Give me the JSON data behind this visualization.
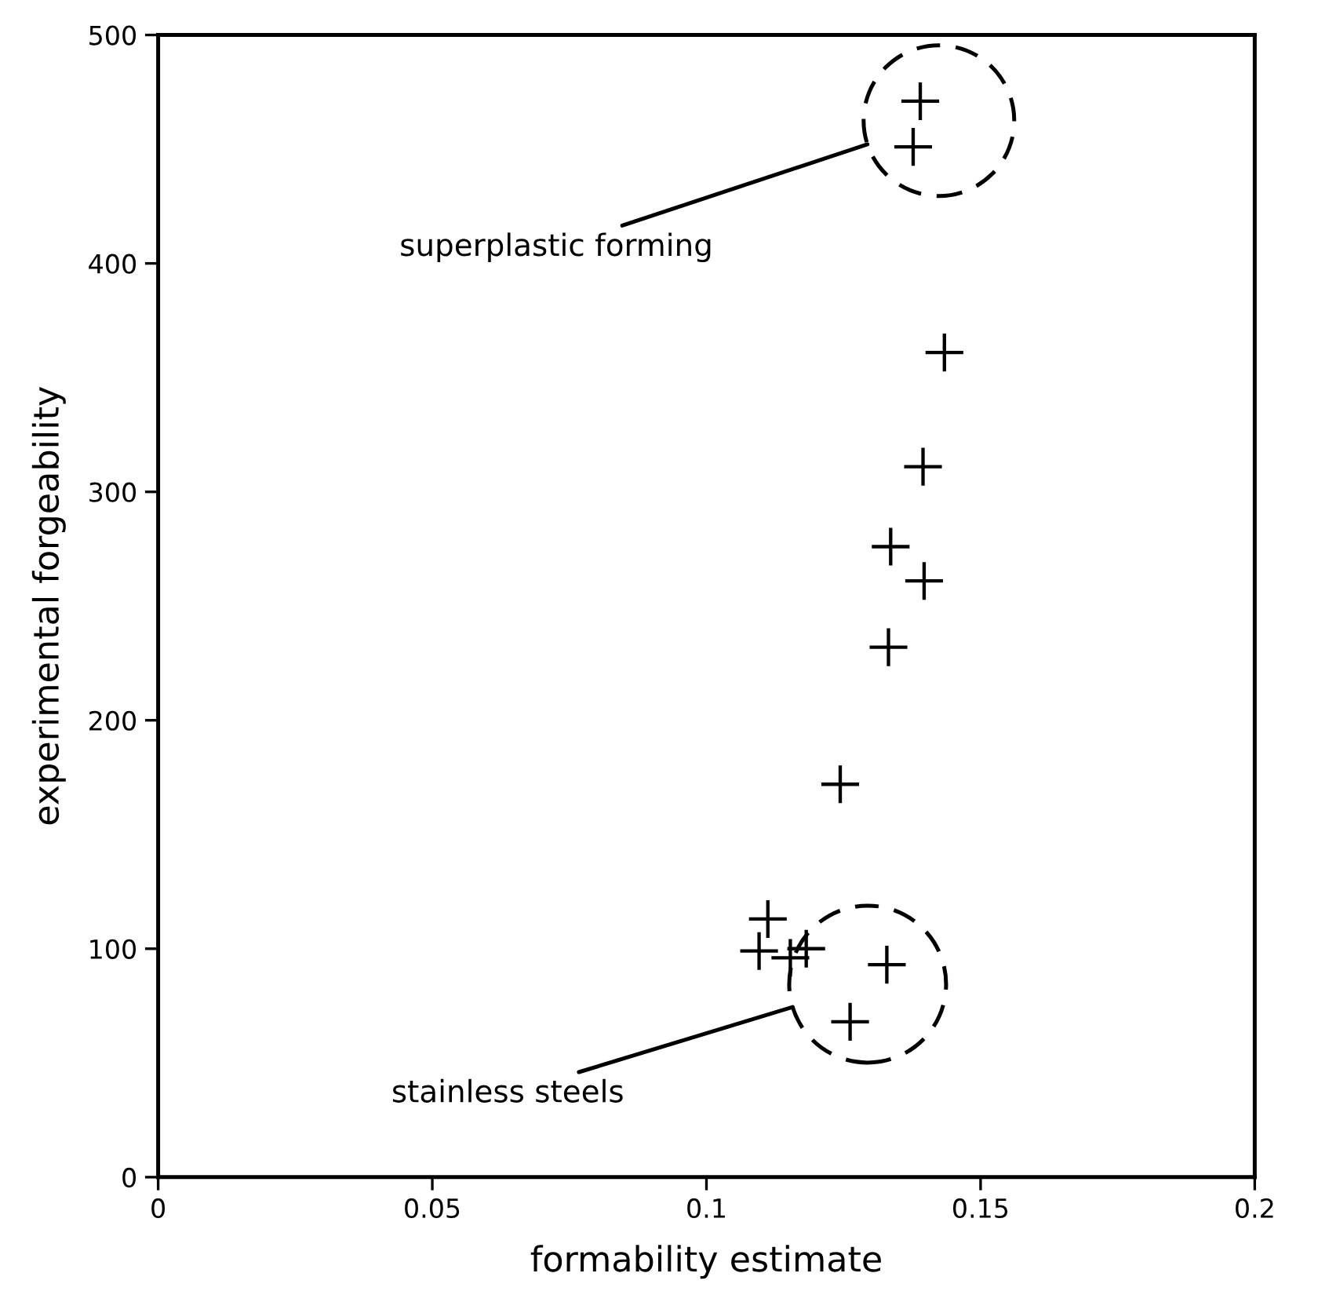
{
  "chart_data": {
    "type": "scatter",
    "xlabel": "formability estimate",
    "ylabel": "experimental forgeability",
    "xlim": [
      0,
      0.2
    ],
    "xticks": [
      0,
      0.05,
      0.1,
      0.15,
      0.2
    ],
    "ylim": [
      0,
      500
    ],
    "yticks": [
      0,
      100,
      200,
      300,
      400,
      500
    ],
    "grid": false,
    "marker": "cross",
    "series": [
      {
        "color": "#000000",
        "x": [
          0.139,
          0.1377,
          0.1434,
          0.1395,
          0.1336,
          0.1397,
          0.1332,
          0.1244,
          0.1112,
          0.1096,
          0.1153,
          0.1182,
          0.1329,
          0.1262
        ],
        "values": [
          471,
          451,
          361,
          311,
          276,
          261,
          232,
          172,
          113,
          99,
          96,
          100,
          93,
          68
        ]
      }
    ],
    "annotations": [
      "superplastic forming",
      "stainless steels"
    ]
  }
}
